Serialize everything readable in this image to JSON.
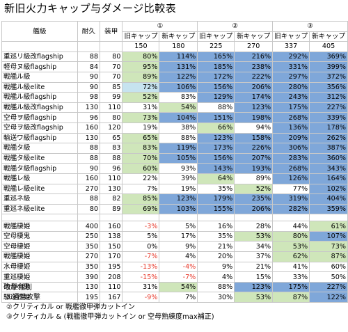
{
  "title": "新旧火力キャップ与ダメージ比較表",
  "header": {
    "col_name": "艦級",
    "col_hp": "耐久",
    "col_armor": "装甲",
    "groups": [
      {
        "label": "①",
        "old": "旧キャップ",
        "new": "新キャップ",
        "old_val": "150",
        "new_val": "180"
      },
      {
        "label": "②",
        "old": "旧キャップ",
        "new": "新キャップ",
        "old_val": "225",
        "new_val": "270"
      },
      {
        "label": "③",
        "old": "旧キャップ",
        "new": "新キャップ",
        "old_val": "337",
        "new_val": "405"
      }
    ]
  },
  "colors": {
    "green": "#cfe6ba",
    "blue": "#7fa7d9",
    "lightblue": "#c6e3ef",
    "red": "#e8392b"
  },
  "section1": [
    {
      "name": "重巡リ級改flagship",
      "hp": "88",
      "armor": "80",
      "v": [
        "80%",
        "114%",
        "165%",
        "216%",
        "292%",
        "369%"
      ],
      "c": [
        "g",
        "b",
        "b",
        "b",
        "b",
        "b"
      ]
    },
    {
      "name": "軽母ヌ級flagship",
      "hp": "84",
      "armor": "70",
      "v": [
        "95%",
        "131%",
        "185%",
        "238%",
        "331%",
        "399%"
      ],
      "c": [
        "g",
        "b",
        "b",
        "b",
        "b",
        "b"
      ]
    },
    {
      "name": "戦艦ル級",
      "hp": "90",
      "armor": "70",
      "v": [
        "89%",
        "122%",
        "172%",
        "222%",
        "297%",
        "372%"
      ],
      "c": [
        "g",
        "b",
        "b",
        "b",
        "b",
        "b"
      ]
    },
    {
      "name": "戦艦ル級elite",
      "hp": "90",
      "armor": "85",
      "v": [
        "72%",
        "106%",
        "156%",
        "206%",
        "280%",
        "356%"
      ],
      "c": [
        "lb",
        "b",
        "b",
        "b",
        "b",
        "b"
      ]
    },
    {
      "name": "戦艦ル級flagship",
      "hp": "98",
      "armor": "99",
      "v": [
        "52%",
        "83%",
        "129%",
        "174%",
        "243%",
        "312%"
      ],
      "c": [
        "g",
        "",
        "b",
        "b",
        "b",
        "b"
      ]
    },
    {
      "name": "戦艦ル級改flagship",
      "hp": "130",
      "armor": "110",
      "v": [
        "31%",
        "54%",
        "88%",
        "123%",
        "175%",
        "227%"
      ],
      "c": [
        "",
        "g",
        "",
        "b",
        "b",
        "b"
      ]
    },
    {
      "name": "空母ヲ級flagship",
      "hp": "96",
      "armor": "80",
      "v": [
        "73%",
        "104%",
        "151%",
        "198%",
        "268%",
        "339%"
      ],
      "c": [
        "g",
        "b",
        "b",
        "b",
        "b",
        "b"
      ]
    },
    {
      "name": "空母ヲ級改flagship",
      "hp": "160",
      "armor": "120",
      "v": [
        "19%",
        "38%",
        "66%",
        "94%",
        "136%",
        "178%"
      ],
      "c": [
        "",
        "",
        "g",
        "",
        "b",
        "b"
      ]
    },
    {
      "name": "輸送ワ級flagship",
      "hp": "130",
      "armor": "65",
      "v": [
        "65%",
        "88%",
        "123%",
        "158%",
        "209%",
        "262%"
      ],
      "c": [
        "g",
        "",
        "b",
        "b",
        "b",
        "b"
      ]
    },
    {
      "name": "戦艦タ級",
      "hp": "88",
      "armor": "83",
      "v": [
        "83%",
        "119%",
        "173%",
        "226%",
        "306%",
        "387%"
      ],
      "c": [
        "g",
        "b",
        "b",
        "b",
        "b",
        "b"
      ]
    },
    {
      "name": "戦艦タ級elite",
      "hp": "88",
      "armor": "88",
      "v": [
        "70%",
        "105%",
        "156%",
        "207%",
        "283%",
        "360%"
      ],
      "c": [
        "g",
        "b",
        "b",
        "b",
        "b",
        "b"
      ]
    },
    {
      "name": "戦艦タ級flagship",
      "hp": "90",
      "armor": "96",
      "v": [
        "60%",
        "93%",
        "143%",
        "193%",
        "268%",
        "343%"
      ],
      "c": [
        "g",
        "",
        "b",
        "b",
        "b",
        "b"
      ]
    },
    {
      "name": "戦艦レ級",
      "hp": "160",
      "armor": "110",
      "v": [
        "22%",
        "39%",
        "64%",
        "89%",
        "126%",
        "164%"
      ],
      "c": [
        "",
        "",
        "g",
        "",
        "b",
        "b"
      ]
    },
    {
      "name": "戦艦レ級elite",
      "hp": "270",
      "armor": "130",
      "v": [
        "7%",
        "19%",
        "35%",
        "52%",
        "77%",
        "102%"
      ],
      "c": [
        "",
        "",
        "",
        "g",
        "",
        "b"
      ]
    },
    {
      "name": "重巡ネ級",
      "hp": "88",
      "armor": "82",
      "v": [
        "85%",
        "123%",
        "179%",
        "235%",
        "319%",
        "404%"
      ],
      "c": [
        "g",
        "b",
        "b",
        "b",
        "b",
        "b"
      ]
    },
    {
      "name": "重巡ネ級elite",
      "hp": "80",
      "armor": "89",
      "v": [
        "69%",
        "103%",
        "155%",
        "206%",
        "282%",
        "359%"
      ],
      "c": [
        "g",
        "b",
        "b",
        "b",
        "b",
        "b"
      ]
    }
  ],
  "section2": [
    {
      "name": "戦艦棲姫",
      "hp": "400",
      "armor": "160",
      "v": [
        "-3%",
        "5%",
        "16%",
        "28%",
        "44%",
        "61%"
      ],
      "c": [
        "",
        "",
        "",
        "",
        "",
        "g"
      ],
      "neg": [
        true,
        false,
        false,
        false,
        false,
        false
      ]
    },
    {
      "name": "空母棲鬼",
      "hp": "250",
      "armor": "138",
      "v": [
        "5%",
        "17%",
        "35%",
        "53%",
        "80%",
        "107%"
      ],
      "c": [
        "",
        "",
        "",
        "g",
        "g",
        "b"
      ],
      "neg": [
        false,
        false,
        false,
        false,
        false,
        false
      ]
    },
    {
      "name": "空母棲姫",
      "hp": "350",
      "armor": "150",
      "v": [
        "0%",
        "9%",
        "21%",
        "34%",
        "53%",
        "73%"
      ],
      "c": [
        "",
        "",
        "",
        "",
        "g",
        "g"
      ],
      "neg": [
        false,
        false,
        false,
        false,
        false,
        false
      ]
    },
    {
      "name": "戦艦棲姫",
      "hp": "270",
      "armor": "170",
      "v": [
        "-7%",
        "4%",
        "20%",
        "37%",
        "62%",
        "87%"
      ],
      "c": [
        "",
        "",
        "",
        "",
        "g",
        "g"
      ],
      "neg": [
        true,
        false,
        false,
        false,
        false,
        false
      ]
    },
    {
      "name": "水母棲姫",
      "hp": "350",
      "armor": "195",
      "v": [
        "-13%",
        "-4%",
        "9%",
        "21%",
        "41%",
        "60%"
      ],
      "c": [
        "",
        "",
        "",
        "",
        "",
        ""
      ],
      "neg": [
        true,
        true,
        false,
        false,
        false,
        false
      ]
    },
    {
      "name": "重巡棲姫",
      "hp": "390",
      "armor": "208",
      "v": [
        "-15%",
        "-7%",
        "4%",
        "15%",
        "33%",
        "50%"
      ],
      "c": [
        "",
        "",
        "",
        "",
        "",
        ""
      ],
      "neg": [
        true,
        true,
        false,
        false,
        false,
        false
      ]
    },
    {
      "name": "砲台小鬼",
      "hp": "130",
      "armor": "110",
      "v": [
        "31%",
        "54%",
        "88%",
        "123%",
        "175%",
        "227%"
      ],
      "c": [
        "",
        "g",
        "",
        "b",
        "b",
        "b"
      ],
      "neg": [
        false,
        false,
        false,
        false,
        false,
        false
      ]
    },
    {
      "name": "駆逐古姫",
      "hp": "195",
      "armor": "167",
      "v": [
        "-9%",
        "7%",
        "30%",
        "53%",
        "87%",
        "122%"
      ],
      "c": [
        "",
        "",
        "",
        "g",
        "g",
        "b"
      ],
      "neg": [
        true,
        false,
        false,
        false,
        false,
        false
      ]
    }
  ],
  "notes": {
    "heading": "攻撃種別",
    "items": [
      "①通常攻撃",
      "②クリティカル or 戦艦徹甲弾カットイン",
      "③クリティカル & (戦艦徹甲弾カットイン or 空母熟練度max補正)"
    ]
  }
}
